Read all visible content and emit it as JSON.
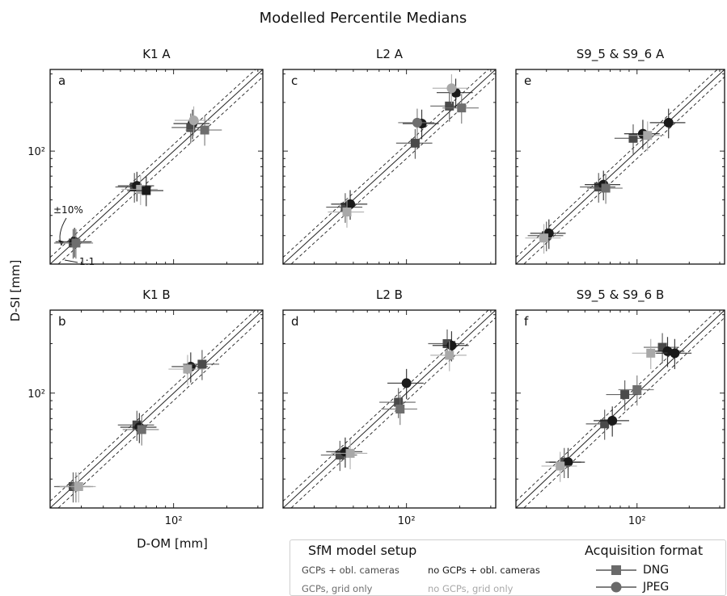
{
  "figure": {
    "title": "Modelled Percentile Medians",
    "xlabel": "D-OM [mm]",
    "ylabel": "D-SI [mm]",
    "annotations": {
      "band": "±10%",
      "identity": "1:1"
    }
  },
  "legend": {
    "setup_title": "SfM model setup",
    "setups": [
      {
        "label": "GCPs + obl. cameras",
        "color": "#4a4a4a"
      },
      {
        "label": "no GCPs + obl. cameras",
        "color": "#1a1a1a"
      },
      {
        "label": "GCPs, grid only",
        "color": "#6e6e6e"
      },
      {
        "label": "no GCPs, grid only",
        "color": "#a8a8a8"
      }
    ],
    "format_title": "Acquisition format",
    "formats": [
      {
        "label": "DNG",
        "marker": "square"
      },
      {
        "label": "JPEG",
        "marker": "circle"
      }
    ]
  },
  "chart_data": [
    {
      "type": "scatter",
      "id": "a",
      "title": "K1 A",
      "xscale": "log",
      "yscale": "log",
      "xlim": [
        20,
        320
      ],
      "ylim": [
        20,
        320
      ],
      "yticks": [
        {
          "value": 100,
          "label": "10²"
        }
      ],
      "xticks": [],
      "points": [
        {
          "x": 27,
          "y": 27,
          "m": "s",
          "s": 0
        },
        {
          "x": 27.5,
          "y": 27.5,
          "m": "o",
          "s": 1
        },
        {
          "x": 28,
          "y": 27,
          "m": "s",
          "s": 2
        },
        {
          "x": 60,
          "y": 60,
          "m": "s",
          "s": 0
        },
        {
          "x": 62,
          "y": 61,
          "m": "o",
          "s": 1
        },
        {
          "x": 65,
          "y": 58,
          "m": "s",
          "s": 3
        },
        {
          "x": 70,
          "y": 57,
          "m": "s",
          "s": 1
        },
        {
          "x": 128,
          "y": 148,
          "m": "o",
          "s": 1
        },
        {
          "x": 125,
          "y": 140,
          "m": "s",
          "s": 0
        },
        {
          "x": 150,
          "y": 135,
          "m": "s",
          "s": 2
        },
        {
          "x": 130,
          "y": 155,
          "m": "o",
          "s": 3
        }
      ]
    },
    {
      "type": "scatter",
      "id": "b",
      "title": "K1 B",
      "xscale": "log",
      "yscale": "log",
      "xlim": [
        20,
        320
      ],
      "ylim": [
        20,
        320
      ],
      "yticks": [
        {
          "value": 100,
          "label": "10²"
        }
      ],
      "xticks": [
        {
          "value": 100,
          "label": "10²"
        }
      ],
      "points": [
        {
          "x": 27,
          "y": 27,
          "m": "s",
          "s": 0
        },
        {
          "x": 28,
          "y": 27,
          "m": "o",
          "s": 2
        },
        {
          "x": 29,
          "y": 27,
          "m": "s",
          "s": 3
        },
        {
          "x": 62,
          "y": 64,
          "m": "s",
          "s": 0
        },
        {
          "x": 64,
          "y": 62,
          "m": "o",
          "s": 1
        },
        {
          "x": 66,
          "y": 60,
          "m": "s",
          "s": 2
        },
        {
          "x": 125,
          "y": 145,
          "m": "o",
          "s": 1
        },
        {
          "x": 145,
          "y": 150,
          "m": "s",
          "s": 0
        },
        {
          "x": 120,
          "y": 140,
          "m": "s",
          "s": 3
        }
      ]
    },
    {
      "type": "scatter",
      "id": "c",
      "title": "L2 A",
      "xscale": "log",
      "yscale": "log",
      "xlim": [
        20,
        320
      ],
      "ylim": [
        20,
        320
      ],
      "yticks": [],
      "xticks": [],
      "points": [
        {
          "x": 45,
          "y": 45,
          "m": "s",
          "s": 0
        },
        {
          "x": 48,
          "y": 47,
          "m": "o",
          "s": 1
        },
        {
          "x": 46,
          "y": 42,
          "m": "s",
          "s": 3
        },
        {
          "x": 112,
          "y": 112,
          "m": "s",
          "s": 0
        },
        {
          "x": 122,
          "y": 148,
          "m": "o",
          "s": 1
        },
        {
          "x": 115,
          "y": 150,
          "m": "o",
          "s": 2
        },
        {
          "x": 175,
          "y": 190,
          "m": "s",
          "s": 0
        },
        {
          "x": 190,
          "y": 230,
          "m": "o",
          "s": 1
        },
        {
          "x": 180,
          "y": 245,
          "m": "o",
          "s": 3
        },
        {
          "x": 205,
          "y": 185,
          "m": "s",
          "s": 2
        }
      ]
    },
    {
      "type": "scatter",
      "id": "d",
      "title": "L2 B",
      "xscale": "log",
      "yscale": "log",
      "xlim": [
        20,
        320
      ],
      "ylim": [
        20,
        320
      ],
      "yticks": [],
      "xticks": [
        {
          "value": 100,
          "label": "10²"
        }
      ],
      "points": [
        {
          "x": 42,
          "y": 42,
          "m": "s",
          "s": 0
        },
        {
          "x": 45,
          "y": 44,
          "m": "o",
          "s": 1
        },
        {
          "x": 48,
          "y": 43,
          "m": "s",
          "s": 3
        },
        {
          "x": 90,
          "y": 88,
          "m": "s",
          "s": 0
        },
        {
          "x": 100,
          "y": 115,
          "m": "o",
          "s": 1
        },
        {
          "x": 92,
          "y": 80,
          "m": "s",
          "s": 2
        },
        {
          "x": 170,
          "y": 200,
          "m": "s",
          "s": 0
        },
        {
          "x": 180,
          "y": 195,
          "m": "o",
          "s": 1
        },
        {
          "x": 175,
          "y": 170,
          "m": "s",
          "s": 3
        }
      ]
    },
    {
      "type": "scatter",
      "id": "e",
      "title": "S9_5 & S9_6 A",
      "xscale": "log",
      "yscale": "log",
      "xlim": [
        20,
        320
      ],
      "ylim": [
        20,
        320
      ],
      "yticks": [],
      "xticks": [],
      "points": [
        {
          "x": 30,
          "y": 30,
          "m": "s",
          "s": 0
        },
        {
          "x": 31,
          "y": 31,
          "m": "o",
          "s": 1
        },
        {
          "x": 29,
          "y": 29,
          "m": "s",
          "s": 3
        },
        {
          "x": 60,
          "y": 60,
          "m": "s",
          "s": 0
        },
        {
          "x": 64,
          "y": 62,
          "m": "o",
          "s": 1
        },
        {
          "x": 66,
          "y": 59,
          "m": "s",
          "s": 2
        },
        {
          "x": 95,
          "y": 120,
          "m": "s",
          "s": 0
        },
        {
          "x": 108,
          "y": 128,
          "m": "o",
          "s": 1
        },
        {
          "x": 115,
          "y": 125,
          "m": "s",
          "s": 3
        },
        {
          "x": 152,
          "y": 150,
          "m": "o",
          "s": 1
        }
      ]
    },
    {
      "type": "scatter",
      "id": "f",
      "title": "S9_5 & S9_6 B",
      "xscale": "log",
      "yscale": "log",
      "xlim": [
        20,
        320
      ],
      "ylim": [
        20,
        320
      ],
      "yticks": [],
      "xticks": [
        {
          "value": 100,
          "label": "10²"
        }
      ],
      "points": [
        {
          "x": 38,
          "y": 38,
          "m": "s",
          "s": 0
        },
        {
          "x": 40,
          "y": 38,
          "m": "o",
          "s": 1
        },
        {
          "x": 36,
          "y": 36,
          "m": "s",
          "s": 3
        },
        {
          "x": 65,
          "y": 65,
          "m": "s",
          "s": 0
        },
        {
          "x": 72,
          "y": 68,
          "m": "o",
          "s": 1
        },
        {
          "x": 100,
          "y": 105,
          "m": "s",
          "s": 2
        },
        {
          "x": 85,
          "y": 98,
          "m": "s",
          "s": 0
        },
        {
          "x": 140,
          "y": 190,
          "m": "s",
          "s": 0
        },
        {
          "x": 150,
          "y": 180,
          "m": "o",
          "s": 1
        },
        {
          "x": 120,
          "y": 175,
          "m": "s",
          "s": 3
        },
        {
          "x": 165,
          "y": 175,
          "m": "o",
          "s": 1
        }
      ]
    }
  ]
}
